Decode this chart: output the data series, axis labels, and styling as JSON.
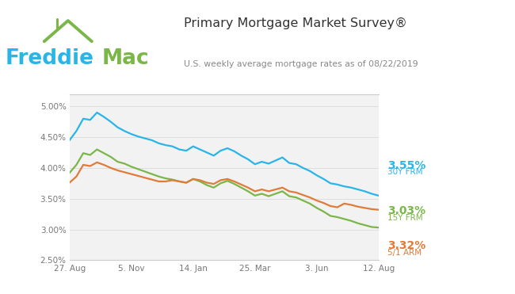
{
  "title": "Primary Mortgage Market Survey®",
  "subtitle": "U.S. weekly average mortgage rates as of 08/22/2019",
  "title_color": "#333333",
  "subtitle_color": "#888888",
  "background_color": "#ffffff",
  "plot_bg_color": "#f2f2f2",
  "grid_color": "#dddddd",
  "ylim": [
    0.025,
    0.052
  ],
  "yticks": [
    0.025,
    0.03,
    0.035,
    0.04,
    0.045,
    0.05
  ],
  "xtick_labels": [
    "27. Aug",
    "5. Nov",
    "14. Jan",
    "25. Mar",
    "3. Jun",
    "12. Aug"
  ],
  "line_30y_color": "#29b5e8",
  "line_15y_color": "#7ab648",
  "line_arm_color": "#e07b39",
  "label_30y": "3.55%",
  "label_30y_sub": "30Y FRM",
  "label_15y": "3.03%",
  "label_15y_sub": "15Y FRM",
  "label_arm": "3.32%",
  "label_arm_sub": "5/1 ARM",
  "freddie_color": "#29b5e8",
  "mac_color": "#7ab648",
  "house_color": "#7ab648",
  "series_30y": [
    4.45,
    4.6,
    4.8,
    4.78,
    4.9,
    4.83,
    4.75,
    4.66,
    4.6,
    4.55,
    4.51,
    4.48,
    4.45,
    4.4,
    4.37,
    4.35,
    4.3,
    4.28,
    4.35,
    4.3,
    4.25,
    4.2,
    4.28,
    4.32,
    4.27,
    4.2,
    4.14,
    4.06,
    4.1,
    4.07,
    4.12,
    4.17,
    4.08,
    4.06,
    4.0,
    3.95,
    3.88,
    3.82,
    3.75,
    3.73,
    3.7,
    3.68,
    3.65,
    3.62,
    3.58,
    3.55
  ],
  "series_15y": [
    3.92,
    4.05,
    4.24,
    4.21,
    4.3,
    4.24,
    4.18,
    4.1,
    4.07,
    4.02,
    3.98,
    3.94,
    3.9,
    3.86,
    3.83,
    3.81,
    3.78,
    3.76,
    3.82,
    3.78,
    3.72,
    3.68,
    3.75,
    3.79,
    3.74,
    3.68,
    3.62,
    3.55,
    3.58,
    3.54,
    3.58,
    3.62,
    3.54,
    3.52,
    3.47,
    3.42,
    3.35,
    3.29,
    3.22,
    3.2,
    3.17,
    3.14,
    3.1,
    3.07,
    3.04,
    3.03
  ],
  "series_arm": [
    3.76,
    3.86,
    4.05,
    4.03,
    4.09,
    4.05,
    4.0,
    3.96,
    3.93,
    3.9,
    3.87,
    3.84,
    3.81,
    3.78,
    3.78,
    3.8,
    3.78,
    3.76,
    3.82,
    3.8,
    3.76,
    3.74,
    3.8,
    3.82,
    3.78,
    3.73,
    3.68,
    3.62,
    3.65,
    3.62,
    3.65,
    3.68,
    3.62,
    3.6,
    3.56,
    3.52,
    3.47,
    3.43,
    3.38,
    3.36,
    3.42,
    3.4,
    3.37,
    3.35,
    3.33,
    3.32
  ]
}
